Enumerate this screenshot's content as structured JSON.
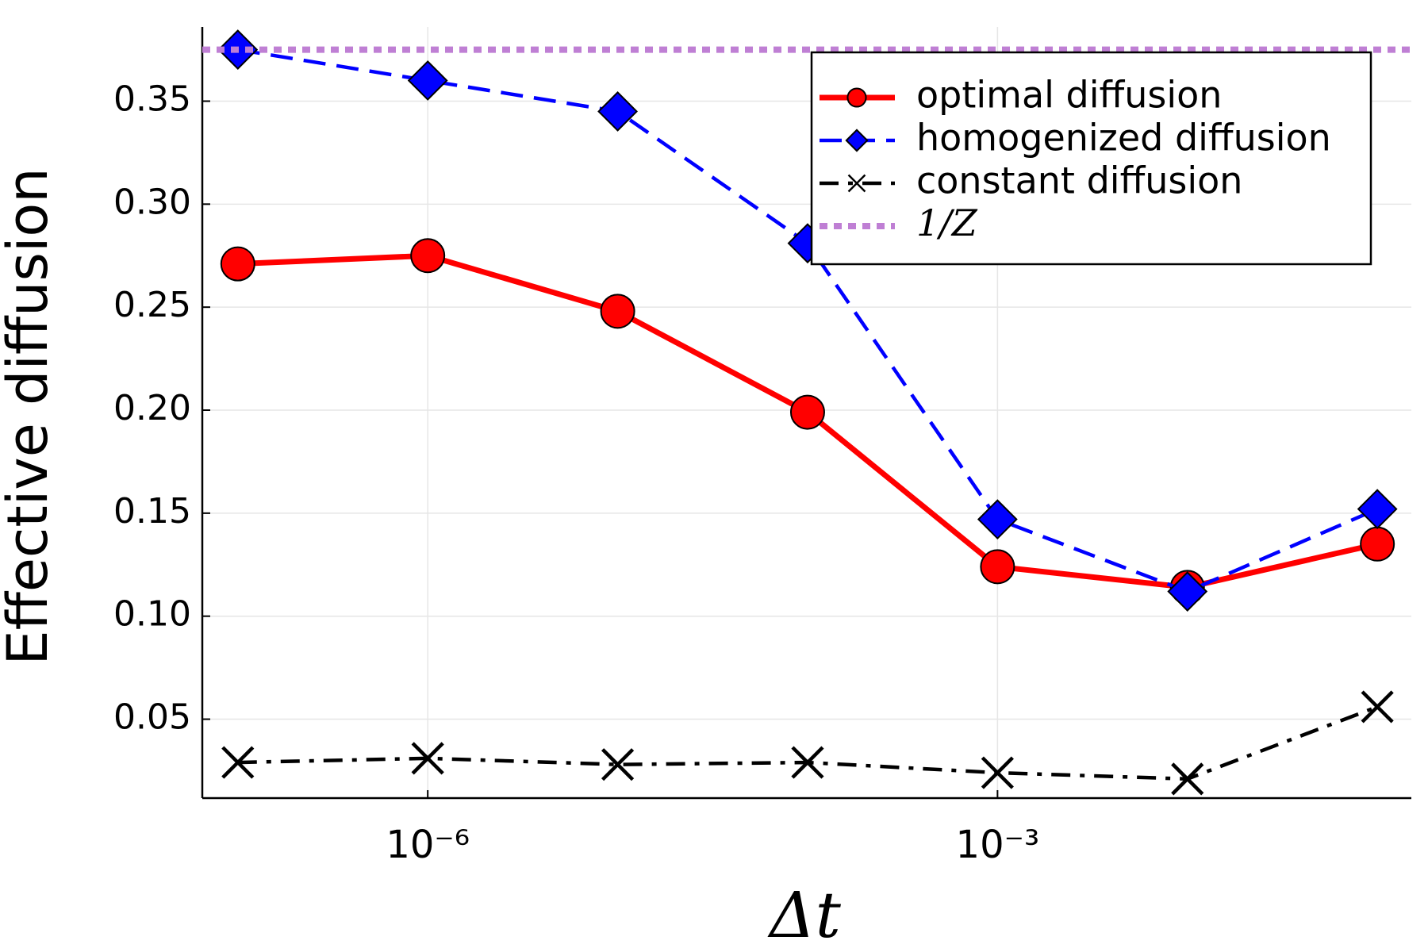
{
  "chart_data": {
    "type": "line",
    "xlabel": "Δt",
    "ylabel": "Effective diffusion",
    "xscale": "log",
    "x": [
      1e-07,
      1e-06,
      1e-05,
      0.0001,
      0.001,
      0.01,
      0.1
    ],
    "xlim": [
      6.5e-08,
      0.151
    ],
    "xticks": [
      {
        "value": 1e-06,
        "label": "10⁻⁶"
      },
      {
        "value": 0.001,
        "label": "10⁻³"
      }
    ],
    "ylim": [
      0.0117,
      0.386
    ],
    "yticks": [
      0.05,
      {
        "value": 0.1,
        "label": "0.10"
      },
      0.15,
      {
        "value": 0.2,
        "label": "0.20"
      },
      0.25,
      {
        "value": 0.3,
        "label": "0.30"
      },
      0.35
    ],
    "grid": true,
    "legend": "top-right",
    "series": [
      {
        "name": "optimal diffusion",
        "color": "#ff0000",
        "line": "solid",
        "marker": "circle",
        "values": [
          0.271,
          0.275,
          0.248,
          0.199,
          0.124,
          0.114,
          0.135
        ]
      },
      {
        "name": "homogenized diffusion",
        "color": "#0000ff",
        "line": "dash",
        "marker": "diamond",
        "values": [
          0.375,
          0.36,
          0.345,
          0.281,
          0.147,
          0.112,
          0.152
        ]
      },
      {
        "name": "constant diffusion",
        "color": "#000000",
        "line": "dashdot",
        "marker": "x",
        "values": [
          0.029,
          0.031,
          0.028,
          0.029,
          0.024,
          0.021,
          0.056
        ]
      }
    ],
    "reference_lines": [
      {
        "name": "1/Z",
        "value": 0.375,
        "color": "#bf7fd4",
        "line": "dot"
      }
    ]
  }
}
